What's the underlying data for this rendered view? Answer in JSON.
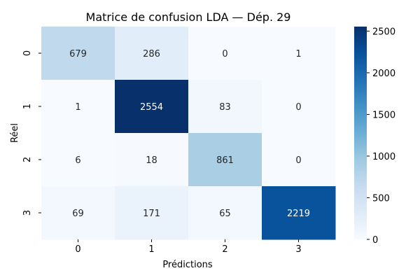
{
  "chart_data": {
    "type": "heatmap",
    "title": "Matrice de confusion LDA — Dép. 29",
    "xlabel": "Prédictions",
    "ylabel": "Réel",
    "x_categories": [
      "0",
      "1",
      "2",
      "3"
    ],
    "y_categories": [
      "0",
      "1",
      "2",
      "3"
    ],
    "values": [
      [
        679,
        286,
        0,
        1
      ],
      [
        1,
        2554,
        83,
        0
      ],
      [
        6,
        18,
        861,
        0
      ],
      [
        69,
        171,
        65,
        2219
      ]
    ],
    "colorbar": {
      "range": [
        0,
        2554
      ],
      "ticks": [
        0,
        500,
        1000,
        1500,
        2000,
        2500
      ],
      "colormap": "Blues"
    },
    "grid": false
  }
}
